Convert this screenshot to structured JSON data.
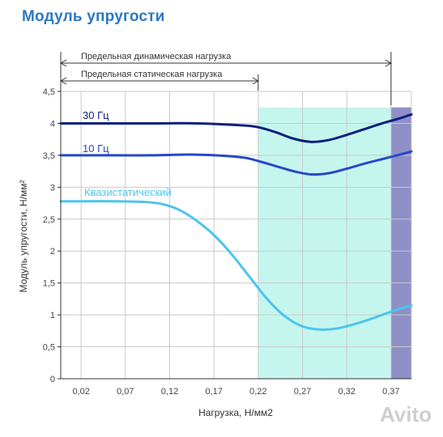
{
  "title": "Модуль упругости",
  "watermark": "Avito",
  "chart_data": {
    "type": "line",
    "title": "Модуль упругости",
    "xlabel": "Нагрузка, Н/мм2",
    "ylabel": "Модуль упругости, Н/мм²",
    "x_ticks": [
      "0,02",
      "0,07",
      "0,12",
      "0,17",
      "0,22",
      "0,27",
      "0,32",
      "0,37"
    ],
    "y_ticks": [
      "0",
      "0,5",
      "1",
      "1,5",
      "2",
      "2,5",
      "3",
      "3,5",
      "4",
      "4,5"
    ],
    "xlim": [
      -0.003,
      0.393
    ],
    "ylim": [
      0,
      4.5
    ],
    "grid": true,
    "range_annotations": [
      {
        "label": "Предельная динамическая нагрузка",
        "x_end": 0.37
      },
      {
        "label": "Предельная статическая нагрузка",
        "x_end": 0.22
      }
    ],
    "shaded_regions": [
      {
        "x_start": 0.22,
        "x_end": 0.37,
        "y_max": 4.25,
        "color": "#c4f6ee"
      },
      {
        "x_start": 0.37,
        "x_end": 0.393,
        "y_max": 4.25,
        "color": "#8f8fc8"
      }
    ],
    "series": [
      {
        "name": "30 Гц",
        "color": "#0c1f7c",
        "x": [
          -0.003,
          0.05,
          0.1,
          0.15,
          0.2,
          0.22,
          0.24,
          0.26,
          0.28,
          0.3,
          0.32,
          0.34,
          0.36,
          0.38,
          0.393
        ],
        "y": [
          4.0,
          4.0,
          4.0,
          4.0,
          3.97,
          3.94,
          3.86,
          3.76,
          3.71,
          3.74,
          3.82,
          3.91,
          4.0,
          4.08,
          4.14
        ]
      },
      {
        "name": "10 Гц",
        "color": "#2848c8",
        "x": [
          -0.003,
          0.05,
          0.1,
          0.15,
          0.2,
          0.22,
          0.24,
          0.26,
          0.28,
          0.3,
          0.32,
          0.34,
          0.36,
          0.38,
          0.393
        ],
        "y": [
          3.5,
          3.5,
          3.5,
          3.51,
          3.47,
          3.41,
          3.33,
          3.25,
          3.2,
          3.22,
          3.29,
          3.37,
          3.44,
          3.51,
          3.56
        ]
      },
      {
        "name": "Квазистатический",
        "color": "#4dc4ee",
        "x": [
          -0.003,
          0.02,
          0.06,
          0.09,
          0.11,
          0.13,
          0.15,
          0.17,
          0.19,
          0.21,
          0.23,
          0.25,
          0.27,
          0.29,
          0.31,
          0.33,
          0.35,
          0.37,
          0.393
        ],
        "y": [
          2.78,
          2.78,
          2.78,
          2.77,
          2.74,
          2.65,
          2.48,
          2.25,
          1.95,
          1.6,
          1.25,
          0.98,
          0.82,
          0.77,
          0.79,
          0.86,
          0.95,
          1.05,
          1.15
        ]
      }
    ]
  }
}
